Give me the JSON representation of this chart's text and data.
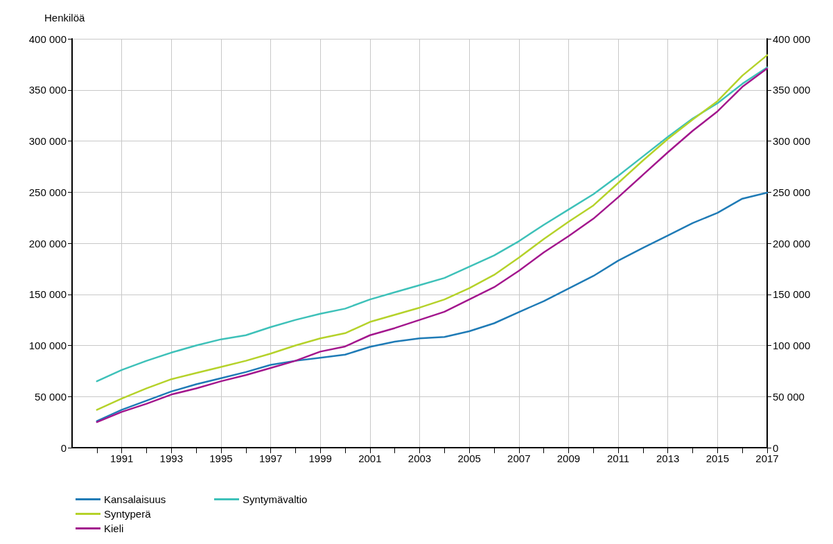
{
  "chart_data": {
    "type": "line",
    "ylabel": "Henkilöä",
    "x": [
      1990,
      1991,
      1992,
      1993,
      1994,
      1995,
      1996,
      1997,
      1998,
      1999,
      2000,
      2001,
      2002,
      2003,
      2004,
      2005,
      2006,
      2007,
      2008,
      2009,
      2010,
      2011,
      2012,
      2013,
      2014,
      2015,
      2016,
      2017
    ],
    "series": [
      {
        "name": "Kansalaisuus",
        "color": "#1f7bb6",
        "values": [
          26000,
          37000,
          46000,
          55000,
          62000,
          68000,
          74000,
          81000,
          85000,
          88000,
          91000,
          98600,
          103700,
          107000,
          108300,
          113900,
          121700,
          132700,
          143300,
          155700,
          168000,
          183000,
          195500,
          207500,
          219700,
          229800,
          243600,
          249500
        ]
      },
      {
        "name": "Syntymävaltio",
        "color": "#3ec1b9",
        "values": [
          65000,
          76000,
          85000,
          93000,
          100000,
          106000,
          110000,
          118000,
          125000,
          131000,
          136000,
          145000,
          152000,
          159000,
          166000,
          177000,
          188000,
          202000,
          218000,
          233000,
          248000,
          266000,
          285000,
          304000,
          322000,
          337000,
          356000,
          372000
        ]
      },
      {
        "name": "Syntyperä",
        "color": "#b5d22a",
        "values": [
          37000,
          48000,
          58000,
          67000,
          73000,
          79000,
          85000,
          92000,
          100000,
          107000,
          112000,
          123000,
          130000,
          137000,
          145000,
          156000,
          169000,
          186000,
          204000,
          221000,
          237000,
          259000,
          281000,
          302000,
          321000,
          339000,
          364000,
          384000
        ]
      },
      {
        "name": "Kieli",
        "color": "#a3168d",
        "values": [
          25000,
          35000,
          43000,
          52000,
          58000,
          65000,
          71000,
          78000,
          85000,
          94000,
          99000,
          110000,
          117000,
          125000,
          133000,
          145000,
          157000,
          173000,
          191000,
          207000,
          224000,
          245000,
          267000,
          289000,
          310000,
          329000,
          353000,
          371000
        ]
      }
    ],
    "xlim": [
      1989,
      2017
    ],
    "xticks": [
      {
        "value": 1990,
        "label": null
      },
      1991,
      {
        "value": 1992,
        "label": null
      },
      1993,
      {
        "value": 1994,
        "label": null
      },
      1995,
      {
        "value": 1996,
        "label": null
      },
      1997,
      {
        "value": 1998,
        "label": null
      },
      1999,
      {
        "value": 2000,
        "label": null
      },
      2001,
      {
        "value": 2002,
        "label": null
      },
      2003,
      {
        "value": 2004,
        "label": null
      },
      2005,
      {
        "value": 2006,
        "label": null
      },
      2007,
      {
        "value": 2008,
        "label": null
      },
      2009,
      {
        "value": 2010,
        "label": null
      },
      2011,
      {
        "value": 2012,
        "label": null
      },
      2013,
      {
        "value": 2014,
        "label": null
      },
      2015,
      {
        "value": 2016,
        "label": null
      },
      2017
    ],
    "ylim": [
      0,
      400000
    ],
    "yticks": [
      0,
      {
        "value": 50000,
        "label": "50 000"
      },
      {
        "value": 100000,
        "label": "100 000"
      },
      {
        "value": 150000,
        "label": "150 000"
      },
      {
        "value": 200000,
        "label": "200 000"
      },
      {
        "value": 250000,
        "label": "250 000"
      },
      {
        "value": 300000,
        "label": "300 000"
      },
      {
        "value": 350000,
        "label": "350 000"
      },
      {
        "value": 400000,
        "label": "400 000"
      }
    ],
    "y2lim": [
      0,
      400000
    ],
    "y2ticks": [
      0,
      {
        "value": 50000,
        "label": "50 000"
      },
      {
        "value": 100000,
        "label": "100 000"
      },
      {
        "value": 150000,
        "label": "150 000"
      },
      {
        "value": 200000,
        "label": "200 000"
      },
      {
        "value": 250000,
        "label": "250 000"
      },
      {
        "value": 300000,
        "label": "300 000"
      },
      {
        "value": 350000,
        "label": "350 000"
      },
      {
        "value": 400000,
        "label": "400 000"
      }
    ],
    "grid": true,
    "legend": "bottom left",
    "marker": "none",
    "line_style": "solid"
  }
}
